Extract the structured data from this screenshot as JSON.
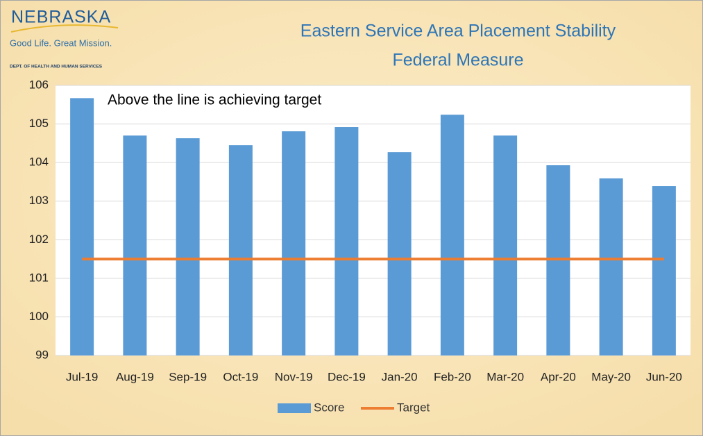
{
  "logo": {
    "name": "NEBRASKA",
    "tagline": "Good Life. Great Mission.",
    "department": "DEPT. OF HEALTH AND HUMAN SERVICES"
  },
  "chart_data": {
    "type": "bar",
    "title": [
      "Eastern Service Area Placement Stability",
      "Federal Measure"
    ],
    "annotation": "Above the line is achieving target",
    "categories": [
      "Jul-19",
      "Aug-19",
      "Sep-19",
      "Oct-19",
      "Nov-19",
      "Dec-19",
      "Jan-20",
      "Feb-20",
      "Mar-20",
      "Apr-20",
      "May-20",
      "Jun-20"
    ],
    "series": [
      {
        "name": "Score",
        "type": "bar",
        "color": "#5b9bd5",
        "values": [
          105.67,
          104.7,
          104.63,
          104.45,
          104.81,
          104.92,
          104.27,
          105.24,
          104.7,
          103.93,
          103.59,
          103.39
        ]
      },
      {
        "name": "Target",
        "type": "line",
        "color": "#ed7d31",
        "values": [
          101.5,
          101.5,
          101.5,
          101.5,
          101.5,
          101.5,
          101.5,
          101.5,
          101.5,
          101.5,
          101.5,
          101.5
        ]
      }
    ],
    "ylim": [
      99,
      106
    ],
    "yticks": [
      99,
      100,
      101,
      102,
      103,
      104,
      105,
      106
    ],
    "grid": true,
    "legend": "bottom"
  }
}
